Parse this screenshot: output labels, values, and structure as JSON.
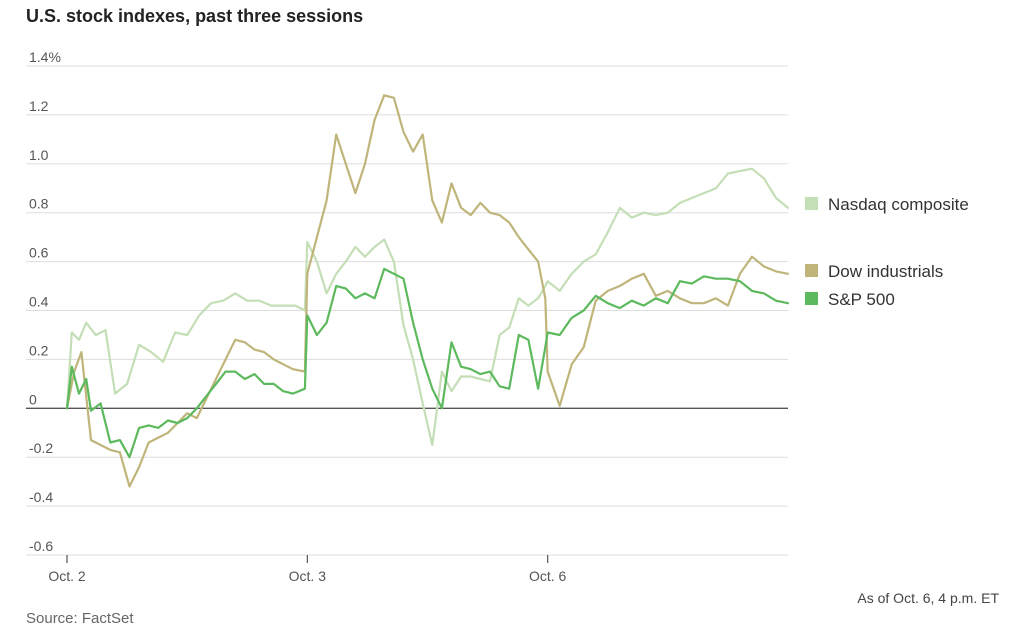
{
  "title": "U.S. stock indexes, past three sessions",
  "source": "Source: FactSet",
  "note": "As of Oct. 6, 4 p.m. ET",
  "chart_data": {
    "type": "line",
    "title": "U.S. stock indexes, past three sessions",
    "xlabel": "",
    "ylabel": "",
    "ylim": [
      -0.6,
      1.4
    ],
    "yticks": [
      -0.6,
      -0.4,
      -0.2,
      0,
      0.2,
      0.4,
      0.6,
      0.8,
      1.0,
      1.2,
      1.4
    ],
    "ytick_labels": [
      "-0.6",
      "-0.4",
      "-0.2",
      "0",
      "0.2",
      "0.4",
      "0.6",
      "0.8",
      "1.0",
      "1.2",
      "1.4%"
    ],
    "xlim": [
      0,
      3
    ],
    "xticks": [
      0,
      1,
      2
    ],
    "xtick_labels": [
      "Oct. 2",
      "Oct. 3",
      "Oct. 6"
    ],
    "grid": true,
    "legend_position": "right",
    "series": [
      {
        "name": "Nasdaq composite",
        "color": "#c4deb6",
        "x": [
          0,
          0.02,
          0.05,
          0.08,
          0.12,
          0.16,
          0.2,
          0.25,
          0.3,
          0.35,
          0.4,
          0.45,
          0.5,
          0.55,
          0.6,
          0.65,
          0.7,
          0.75,
          0.8,
          0.85,
          0.9,
          0.95,
          0.99,
          1.0,
          1.04,
          1.08,
          1.12,
          1.16,
          1.2,
          1.24,
          1.28,
          1.32,
          1.36,
          1.4,
          1.44,
          1.48,
          1.52,
          1.56,
          1.6,
          1.64,
          1.68,
          1.72,
          1.76,
          1.8,
          1.84,
          1.88,
          1.92,
          1.96,
          1.99,
          2.0,
          2.05,
          2.1,
          2.15,
          2.2,
          2.25,
          2.3,
          2.35,
          2.4,
          2.45,
          2.5,
          2.55,
          2.6,
          2.65,
          2.7,
          2.75,
          2.8,
          2.85,
          2.9,
          2.95,
          3.0
        ],
        "values": [
          0,
          0.31,
          0.28,
          0.35,
          0.3,
          0.32,
          0.06,
          0.1,
          0.26,
          0.23,
          0.19,
          0.31,
          0.3,
          0.38,
          0.43,
          0.44,
          0.47,
          0.44,
          0.44,
          0.42,
          0.42,
          0.42,
          0.4,
          0.68,
          0.6,
          0.47,
          0.55,
          0.6,
          0.66,
          0.62,
          0.66,
          0.69,
          0.6,
          0.34,
          0.2,
          0.02,
          -0.15,
          0.15,
          0.07,
          0.13,
          0.13,
          0.12,
          0.11,
          0.3,
          0.33,
          0.45,
          0.42,
          0.45,
          0.5,
          0.52,
          0.48,
          0.55,
          0.6,
          0.63,
          0.72,
          0.82,
          0.78,
          0.8,
          0.79,
          0.8,
          0.84,
          0.86,
          0.88,
          0.9,
          0.96,
          0.97,
          0.98,
          0.94,
          0.86,
          0.82
        ]
      },
      {
        "name": "Dow industrials",
        "color": "#bfb57a",
        "x": [
          0,
          0.03,
          0.06,
          0.1,
          0.14,
          0.18,
          0.22,
          0.26,
          0.3,
          0.34,
          0.38,
          0.42,
          0.46,
          0.5,
          0.54,
          0.58,
          0.62,
          0.66,
          0.7,
          0.74,
          0.78,
          0.82,
          0.86,
          0.9,
          0.94,
          0.99,
          1.0,
          1.04,
          1.08,
          1.12,
          1.16,
          1.2,
          1.24,
          1.28,
          1.32,
          1.36,
          1.4,
          1.44,
          1.48,
          1.52,
          1.56,
          1.6,
          1.64,
          1.68,
          1.72,
          1.76,
          1.8,
          1.84,
          1.88,
          1.92,
          1.96,
          1.99,
          2.0,
          2.05,
          2.1,
          2.15,
          2.2,
          2.25,
          2.3,
          2.35,
          2.4,
          2.45,
          2.5,
          2.55,
          2.6,
          2.65,
          2.7,
          2.75,
          2.8,
          2.85,
          2.9,
          2.95,
          3.0
        ],
        "values": [
          0,
          0.15,
          0.23,
          -0.13,
          -0.15,
          -0.17,
          -0.18,
          -0.32,
          -0.24,
          -0.14,
          -0.12,
          -0.1,
          -0.06,
          -0.02,
          -0.04,
          0.04,
          0.12,
          0.2,
          0.28,
          0.27,
          0.24,
          0.23,
          0.2,
          0.18,
          0.16,
          0.15,
          0.55,
          0.7,
          0.85,
          1.12,
          1.0,
          0.88,
          1.0,
          1.18,
          1.28,
          1.27,
          1.13,
          1.05,
          1.12,
          0.85,
          0.76,
          0.92,
          0.82,
          0.79,
          0.84,
          0.8,
          0.79,
          0.76,
          0.7,
          0.65,
          0.6,
          0.45,
          0.15,
          0.01,
          0.18,
          0.25,
          0.44,
          0.48,
          0.5,
          0.53,
          0.55,
          0.46,
          0.48,
          0.45,
          0.43,
          0.43,
          0.45,
          0.42,
          0.55,
          0.62,
          0.58,
          0.56,
          0.55
        ]
      },
      {
        "name": "S&P 500",
        "color": "#5db95d",
        "x": [
          0,
          0.02,
          0.05,
          0.08,
          0.1,
          0.14,
          0.18,
          0.22,
          0.26,
          0.3,
          0.34,
          0.38,
          0.42,
          0.46,
          0.5,
          0.54,
          0.58,
          0.62,
          0.66,
          0.7,
          0.74,
          0.78,
          0.82,
          0.86,
          0.9,
          0.94,
          0.99,
          1.0,
          1.04,
          1.08,
          1.12,
          1.16,
          1.2,
          1.24,
          1.28,
          1.32,
          1.36,
          1.4,
          1.44,
          1.48,
          1.52,
          1.56,
          1.6,
          1.64,
          1.68,
          1.72,
          1.76,
          1.8,
          1.84,
          1.88,
          1.92,
          1.96,
          1.99,
          2.0,
          2.05,
          2.1,
          2.15,
          2.2,
          2.25,
          2.3,
          2.35,
          2.4,
          2.45,
          2.5,
          2.55,
          2.6,
          2.65,
          2.7,
          2.75,
          2.8,
          2.85,
          2.9,
          2.95,
          3.0
        ],
        "values": [
          0,
          0.17,
          0.06,
          0.12,
          -0.01,
          0.02,
          -0.14,
          -0.13,
          -0.2,
          -0.08,
          -0.07,
          -0.08,
          -0.05,
          -0.06,
          -0.04,
          0.0,
          0.05,
          0.1,
          0.15,
          0.15,
          0.12,
          0.14,
          0.1,
          0.1,
          0.07,
          0.06,
          0.08,
          0.38,
          0.3,
          0.35,
          0.5,
          0.49,
          0.45,
          0.47,
          0.45,
          0.57,
          0.55,
          0.53,
          0.35,
          0.2,
          0.08,
          0.0,
          0.27,
          0.17,
          0.16,
          0.14,
          0.15,
          0.09,
          0.08,
          0.3,
          0.28,
          0.08,
          0.25,
          0.31,
          0.3,
          0.37,
          0.4,
          0.46,
          0.43,
          0.41,
          0.44,
          0.42,
          0.45,
          0.43,
          0.52,
          0.51,
          0.54,
          0.53,
          0.53,
          0.52,
          0.48,
          0.47,
          0.44,
          0.43
        ]
      }
    ]
  }
}
